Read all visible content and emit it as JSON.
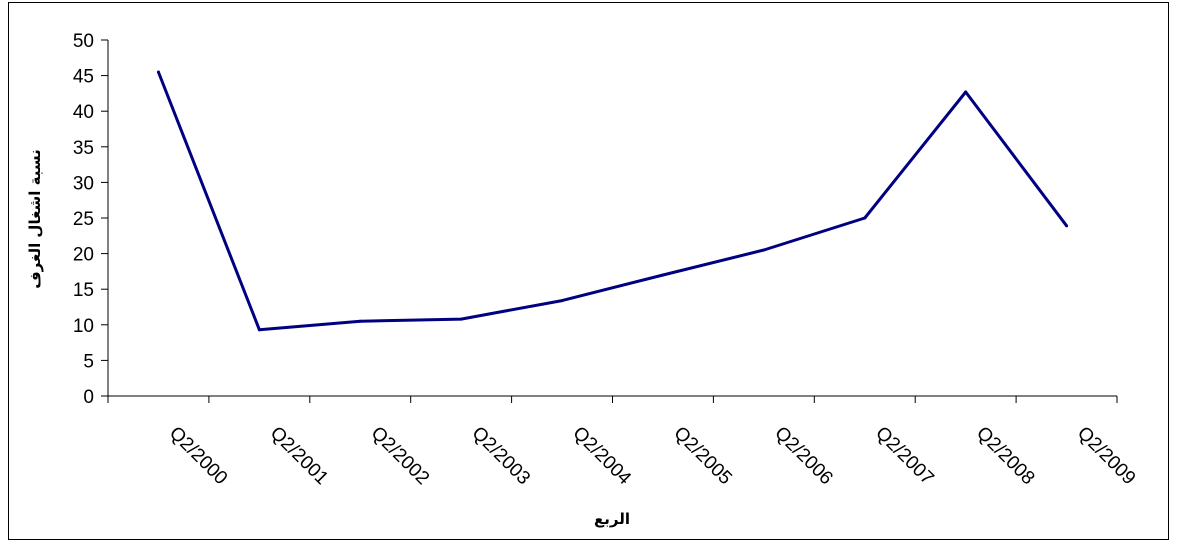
{
  "chart_data": {
    "type": "line",
    "title": "",
    "xlabel": "الربع",
    "ylabel": "نسبة اشغال الغرف",
    "ylim": [
      0,
      50
    ],
    "yticks": [
      0,
      5,
      10,
      15,
      20,
      25,
      30,
      35,
      40,
      45,
      50
    ],
    "grid": false,
    "legend": "none",
    "categories": [
      "Q2/2000",
      "Q2/2001",
      "Q2/2002",
      "Q2/2003",
      "Q2/2004",
      "Q2/2005",
      "Q2/2006",
      "Q2/2007",
      "Q2/2008",
      "Q2/2009"
    ],
    "series": [
      {
        "values": [
          45.5,
          9.3,
          10.5,
          10.8,
          13.4,
          17.0,
          20.5,
          25.0,
          42.7,
          23.9
        ],
        "color": "#000080"
      }
    ]
  }
}
